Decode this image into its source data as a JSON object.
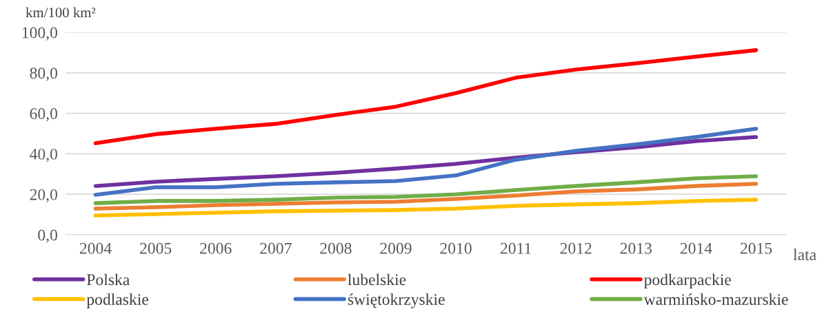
{
  "chart_data": {
    "type": "line",
    "ylabel": "km/100 km²",
    "xlabel": "lata",
    "categories": [
      "2004",
      "2005",
      "2006",
      "2007",
      "2008",
      "2009",
      "2010",
      "2011",
      "2012",
      "2013",
      "2014",
      "2015"
    ],
    "series": [
      {
        "name": "Polska",
        "color": "#7030a0",
        "values": [
          24.1,
          26.2,
          27.6,
          28.9,
          30.6,
          32.7,
          35.0,
          38.1,
          40.8,
          43.2,
          46.3,
          48.3
        ]
      },
      {
        "name": "lubelskie",
        "color": "#ed7d31",
        "values": [
          12.9,
          13.6,
          14.6,
          15.3,
          16.0,
          16.3,
          17.7,
          19.4,
          21.4,
          22.4,
          24.1,
          25.2
        ]
      },
      {
        "name": "podkarpackie",
        "color": "#ff0000",
        "values": [
          45.2,
          49.7,
          52.4,
          54.8,
          59.2,
          63.3,
          70.0,
          77.6,
          81.6,
          84.7,
          88.0,
          91.2
        ]
      },
      {
        "name": "podlaskie",
        "color": "#ffc000",
        "values": [
          9.5,
          10.2,
          10.9,
          11.6,
          11.9,
          12.2,
          12.9,
          14.3,
          15.0,
          15.6,
          16.7,
          17.3
        ]
      },
      {
        "name": "świętokrzyskie",
        "color": "#4472c4",
        "values": [
          19.7,
          23.5,
          23.5,
          25.2,
          25.9,
          26.5,
          29.3,
          37.1,
          41.5,
          44.6,
          48.3,
          52.4
        ]
      },
      {
        "name": "warmińsko-mazurskie",
        "color": "#70ad47",
        "values": [
          15.6,
          16.7,
          16.7,
          17.3,
          18.4,
          18.7,
          20.0,
          22.1,
          24.1,
          25.9,
          27.9,
          28.9
        ]
      }
    ],
    "ylim": [
      0,
      100
    ],
    "yticks": [
      {
        "value": 0,
        "label": "0,0"
      },
      {
        "value": 20,
        "label": "20,0"
      },
      {
        "value": 40,
        "label": "40,0"
      },
      {
        "value": 60,
        "label": "60,0"
      },
      {
        "value": 80,
        "label": "80,0"
      },
      {
        "value": 100,
        "label": "100,0"
      }
    ],
    "grid": "y",
    "legend": "bottom",
    "marker": "none",
    "line_style": "solid"
  }
}
